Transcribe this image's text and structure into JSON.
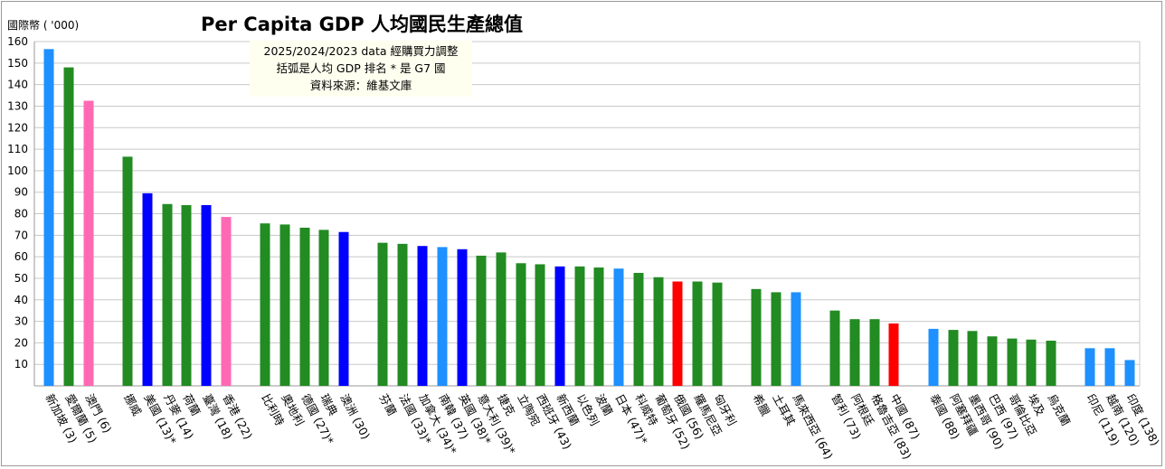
{
  "chart_data": {
    "type": "bar",
    "title": "Per Capita GDP  人均國民生產總值",
    "ylabel": "國際幣 ( '000)",
    "notes": [
      "2025/2024/2023 data 經購買力調整",
      "括弧是人均 GDP 排名   * 是 G7 國",
      "資料來源：維基文庫"
    ],
    "ylim": [
      0,
      160
    ],
    "yticks": [
      10,
      20,
      30,
      40,
      50,
      60,
      70,
      80,
      90,
      100,
      110,
      120,
      130,
      140,
      150,
      160
    ],
    "grid": true,
    "categories": [
      "新加坡 (3)",
      "愛爾蘭 (5)",
      "澳門 (6)",
      "挪威",
      "美國 (13)*",
      "丹麥 (14)",
      "荷蘭",
      "臺灣 (18)",
      "香港 (22)",
      "比利時",
      "奧地利",
      "德國 (27)*",
      "瑞典",
      "澳洲 (30)",
      "芬蘭",
      "法國 (33)*",
      "加拿大 (34)*",
      "南韓 (37)",
      "英國 (38)*",
      "意大利 (39)*",
      "捷克",
      "立陶宛",
      "西班牙 (43)",
      "新西蘭",
      "以色列",
      "波蘭",
      "日本 (47)*",
      "科威特",
      "葡萄牙 (52)",
      "俄國 (56)",
      "羅馬尼亞",
      "匈牙利",
      "希臘",
      "土耳其",
      "馬來西亞 (64)",
      "智利 (73)",
      "阿根廷",
      "格魯吉亞 (83)",
      "中國 (87)",
      "泰國 (88)",
      "阿塞拜疆",
      "墨西哥 (90)",
      "巴西 (97)",
      "哥倫比亞",
      "埃及",
      "烏克蘭",
      "印尼 (119)",
      "越南 (120)",
      "印度 (138)"
    ],
    "values": [
      156.5,
      148,
      132.5,
      106.5,
      89.5,
      84.5,
      84,
      84,
      78.5,
      75.5,
      75,
      73.5,
      72.5,
      71.5,
      66.5,
      66,
      65,
      64.5,
      63.5,
      60.5,
      62,
      57,
      56.5,
      55.5,
      55.5,
      55,
      54.5,
      52.5,
      50.5,
      48.5,
      48.5,
      48,
      45,
      43.5,
      43.5,
      35,
      31,
      31,
      29,
      26.5,
      26,
      25.5,
      23,
      22,
      21.5,
      21,
      17.5,
      17.5,
      12
    ],
    "colors": [
      "#1e90ff",
      "#228b22",
      "#ff69b4",
      "#228b22",
      "#0000ff",
      "#228b22",
      "#228b22",
      "#0000ff",
      "#ff69b4",
      "#228b22",
      "#228b22",
      "#228b22",
      "#228b22",
      "#0000ff",
      "#228b22",
      "#228b22",
      "#0000ff",
      "#1e90ff",
      "#0000ff",
      "#228b22",
      "#228b22",
      "#228b22",
      "#228b22",
      "#0000ff",
      "#228b22",
      "#228b22",
      "#1e90ff",
      "#228b22",
      "#228b22",
      "#ff0000",
      "#228b22",
      "#228b22",
      "#228b22",
      "#228b22",
      "#1e90ff",
      "#228b22",
      "#228b22",
      "#228b22",
      "#ff0000",
      "#1e90ff",
      "#228b22",
      "#228b22",
      "#228b22",
      "#228b22",
      "#228b22",
      "#228b22",
      "#1e90ff",
      "#1e90ff",
      "#1e90ff"
    ]
  }
}
